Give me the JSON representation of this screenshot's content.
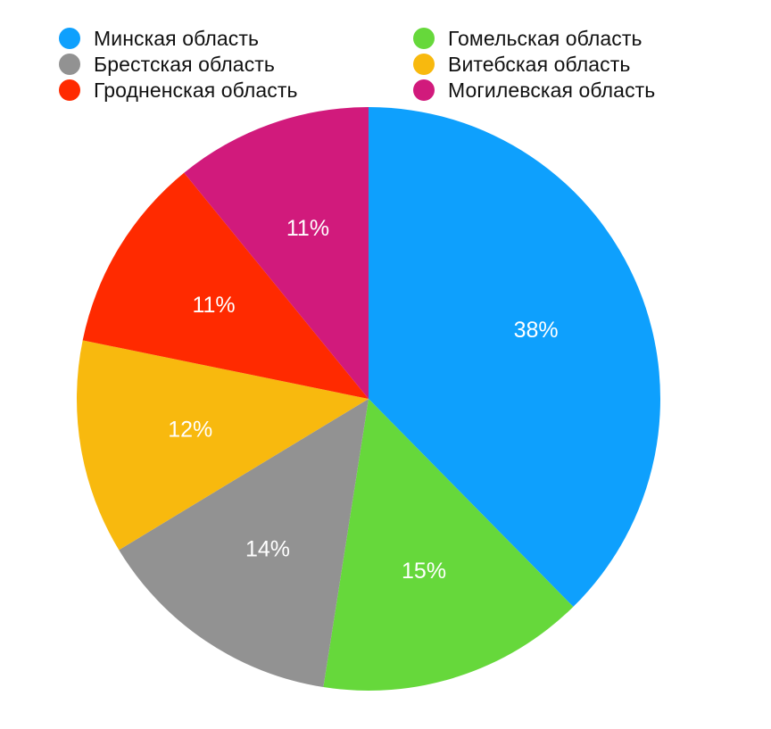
{
  "chart_data": {
    "type": "pie",
    "title": "",
    "start_angle_deg": 0,
    "direction": "clockwise",
    "legend_position": "top",
    "categories": [
      "Минская область",
      "Гомельская область",
      "Брестская область",
      "Витебская область",
      "Гродненская область",
      "Могилевская область"
    ],
    "values": [
      38,
      15,
      14,
      12,
      11,
      11
    ],
    "labels": [
      "38%",
      "15%",
      "14%",
      "12%",
      "11%",
      "11%"
    ],
    "colors": [
      "#0ea0fd",
      "#66d83b",
      "#929292",
      "#f8b90e",
      "#ff2a00",
      "#d11a7c"
    ]
  },
  "legend": {
    "items": [
      {
        "label": "Минская область",
        "color": "#0ea0fd"
      },
      {
        "label": "Брестская область",
        "color": "#929292"
      },
      {
        "label": "Гродненская область",
        "color": "#ff2a00"
      },
      {
        "label": "Гомельская область",
        "color": "#66d83b"
      },
      {
        "label": "Витебская область",
        "color": "#f8b90e"
      },
      {
        "label": "Могилевская область",
        "color": "#d11a7c"
      }
    ]
  }
}
